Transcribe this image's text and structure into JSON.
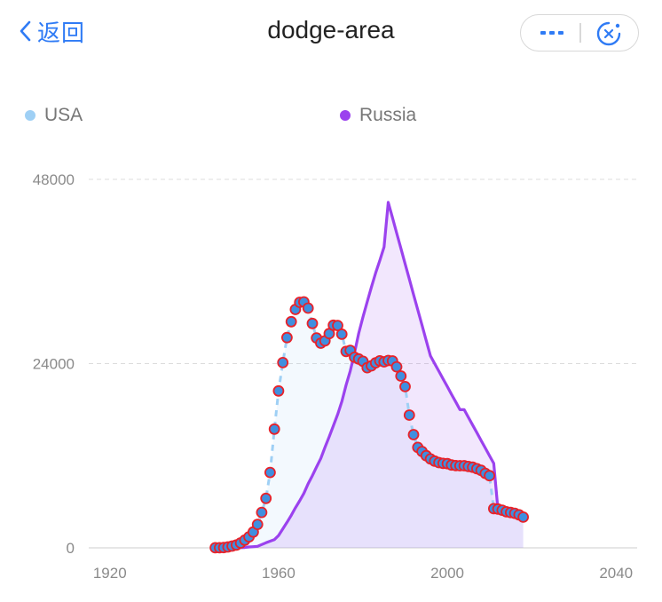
{
  "nav": {
    "back_label": "返回",
    "title": "dodge-area"
  },
  "capsule": {
    "more_icon": "more-dots-icon",
    "close_icon": "close-circle-icon"
  },
  "colors": {
    "accent": "#2f7bf5",
    "usa": "#9fd0f5",
    "russia": "#9b42ee",
    "marker_fill": "#3f8fdf",
    "marker_stroke": "#e8222a"
  },
  "chart_data": {
    "type": "area",
    "title": "dodge-area",
    "xlabel": "",
    "ylabel": "",
    "xlim": [
      1915,
      2045
    ],
    "ylim": [
      0,
      48000
    ],
    "xticks": [
      "1920",
      "1960",
      "2000",
      "2040"
    ],
    "yticks": [
      "0",
      "24000",
      "48000"
    ],
    "grid": true,
    "legend": "top",
    "series": [
      {
        "name": "USA",
        "color": "#9fd0f5",
        "markers": true,
        "points": [
          [
            1945,
            6
          ],
          [
            1946,
            11
          ],
          [
            1947,
            32
          ],
          [
            1948,
            110
          ],
          [
            1949,
            235
          ],
          [
            1950,
            369
          ],
          [
            1951,
            640
          ],
          [
            1952,
            1005
          ],
          [
            1953,
            1436
          ],
          [
            1954,
            2063
          ],
          [
            1955,
            3057
          ],
          [
            1956,
            4618
          ],
          [
            1957,
            6444
          ],
          [
            1958,
            9822
          ],
          [
            1959,
            15468
          ],
          [
            1960,
            20434
          ],
          [
            1961,
            24126
          ],
          [
            1962,
            27387
          ],
          [
            1963,
            29459
          ],
          [
            1964,
            31056
          ],
          [
            1965,
            31982
          ],
          [
            1966,
            32040
          ],
          [
            1967,
            31233
          ],
          [
            1968,
            29224
          ],
          [
            1969,
            27342
          ],
          [
            1970,
            26662
          ],
          [
            1971,
            26956
          ],
          [
            1972,
            27912
          ],
          [
            1973,
            28999
          ],
          [
            1974,
            28965
          ],
          [
            1975,
            27826
          ],
          [
            1976,
            25579
          ],
          [
            1977,
            25722
          ],
          [
            1978,
            24826
          ],
          [
            1979,
            24605
          ],
          [
            1980,
            24304
          ],
          [
            1981,
            23464
          ],
          [
            1982,
            23708
          ],
          [
            1983,
            24099
          ],
          [
            1984,
            24357
          ],
          [
            1985,
            24237
          ],
          [
            1986,
            24401
          ],
          [
            1987,
            24344
          ],
          [
            1988,
            23586
          ],
          [
            1989,
            22380
          ],
          [
            1990,
            21004
          ],
          [
            1991,
            17287
          ],
          [
            1992,
            14747
          ],
          [
            1993,
            13076
          ],
          [
            1994,
            12555
          ],
          [
            1995,
            12008
          ],
          [
            1996,
            11573
          ],
          [
            1997,
            11295
          ],
          [
            1998,
            11108
          ],
          [
            1999,
            11000
          ],
          [
            2000,
            10970
          ],
          [
            2001,
            10790
          ],
          [
            2002,
            10706
          ],
          [
            2003,
            10700
          ],
          [
            2004,
            10700
          ],
          [
            2005,
            10600
          ],
          [
            2006,
            10500
          ],
          [
            2007,
            10300
          ],
          [
            2008,
            10100
          ],
          [
            2009,
            9700
          ],
          [
            2010,
            9400
          ],
          [
            2011,
            5100
          ],
          [
            2012,
            5050
          ],
          [
            2013,
            4900
          ],
          [
            2014,
            4700
          ],
          [
            2015,
            4600
          ],
          [
            2016,
            4500
          ],
          [
            2017,
            4300
          ],
          [
            2018,
            4000
          ]
        ]
      },
      {
        "name": "Russia",
        "color": "#9b42ee",
        "markers": false,
        "points": [
          [
            1945,
            0
          ],
          [
            1946,
            0
          ],
          [
            1947,
            0
          ],
          [
            1948,
            0
          ],
          [
            1949,
            1
          ],
          [
            1950,
            5
          ],
          [
            1951,
            25
          ],
          [
            1952,
            50
          ],
          [
            1953,
            120
          ],
          [
            1954,
            150
          ],
          [
            1955,
            200
          ],
          [
            1956,
            426
          ],
          [
            1957,
            660
          ],
          [
            1958,
            869
          ],
          [
            1959,
            1060
          ],
          [
            1960,
            1605
          ],
          [
            1961,
            2471
          ],
          [
            1962,
            3322
          ],
          [
            1963,
            4238
          ],
          [
            1964,
            5221
          ],
          [
            1965,
            6129
          ],
          [
            1966,
            7089
          ],
          [
            1967,
            8339
          ],
          [
            1968,
            9399
          ],
          [
            1969,
            10538
          ],
          [
            1970,
            11643
          ],
          [
            1971,
            13092
          ],
          [
            1972,
            14478
          ],
          [
            1973,
            15915
          ],
          [
            1974,
            17385
          ],
          [
            1975,
            19055
          ],
          [
            1976,
            21205
          ],
          [
            1977,
            23044
          ],
          [
            1978,
            25393
          ],
          [
            1979,
            27935
          ],
          [
            1980,
            30062
          ],
          [
            1981,
            32049
          ],
          [
            1982,
            33952
          ],
          [
            1983,
            35804
          ],
          [
            1984,
            37431
          ],
          [
            1985,
            39197
          ],
          [
            1986,
            45000
          ],
          [
            1987,
            43000
          ],
          [
            1988,
            41000
          ],
          [
            1989,
            39000
          ],
          [
            1990,
            37000
          ],
          [
            1991,
            35000
          ],
          [
            1992,
            33000
          ],
          [
            1993,
            31000
          ],
          [
            1994,
            29000
          ],
          [
            1995,
            27000
          ],
          [
            1996,
            25000
          ],
          [
            1997,
            24000
          ],
          [
            1998,
            23000
          ],
          [
            1999,
            22000
          ],
          [
            2000,
            21000
          ],
          [
            2001,
            20000
          ],
          [
            2002,
            19000
          ],
          [
            2003,
            18000
          ],
          [
            2004,
            18000
          ],
          [
            2005,
            17000
          ],
          [
            2006,
            16000
          ],
          [
            2007,
            15000
          ],
          [
            2008,
            14000
          ],
          [
            2009,
            13000
          ],
          [
            2010,
            12000
          ],
          [
            2011,
            11000
          ],
          [
            2012,
            5000
          ],
          [
            2013,
            4500
          ],
          [
            2014,
            4300
          ],
          [
            2015,
            4200
          ],
          [
            2016,
            4100
          ],
          [
            2017,
            4000
          ],
          [
            2018,
            4000
          ]
        ]
      }
    ]
  }
}
